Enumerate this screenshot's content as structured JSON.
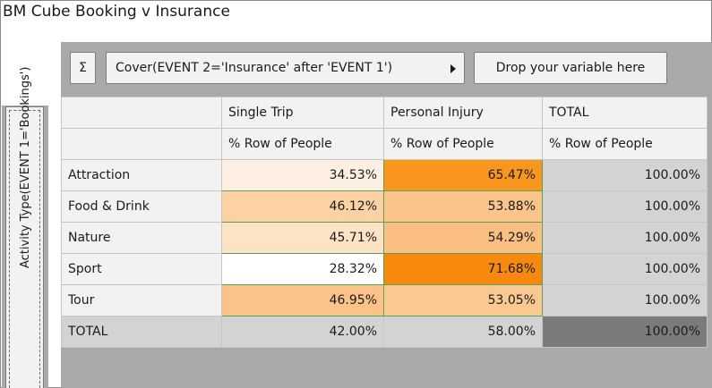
{
  "window": {
    "title": "BM Cube Booking v Insurance"
  },
  "toolbar": {
    "sigma_label": "Σ",
    "cover_label": "Cover(EVENT 2='Insurance' after 'EVENT 1')",
    "drop_label": "Drop your variable here"
  },
  "row_dimension": {
    "label": "Activity Type(EVENT 1='Bookings')"
  },
  "columns": [
    {
      "name": "Single Trip",
      "measure": "% Row of People"
    },
    {
      "name": "Personal Injury",
      "measure": "% Row of People"
    },
    {
      "name": "TOTAL",
      "measure": "% Row of People"
    }
  ],
  "rows": [
    {
      "label": "Attraction",
      "cells": [
        "34.53%",
        "65.47%",
        "100.00%"
      ],
      "colors": [
        "#fdf0e2",
        "#f9961d"
      ]
    },
    {
      "label": "Food & Drink",
      "cells": [
        "46.12%",
        "53.88%",
        "100.00%"
      ],
      "colors": [
        "#fcd1a4",
        "#fbc48a"
      ]
    },
    {
      "label": "Nature",
      "cells": [
        "45.71%",
        "54.29%",
        "100.00%"
      ],
      "colors": [
        "#fde3c6",
        "#fbbf82"
      ]
    },
    {
      "label": "Sport",
      "cells": [
        "28.32%",
        "71.68%",
        "100.00%"
      ],
      "colors": [
        "#ffffff",
        "#f78a0e"
      ]
    },
    {
      "label": "Tour",
      "cells": [
        "46.95%",
        "53.05%",
        "100.00%"
      ],
      "colors": [
        "#fbc389",
        "#fbc892"
      ]
    }
  ],
  "total_row": {
    "label": "TOTAL",
    "cells": [
      "42.00%",
      "58.00%",
      "100.00%"
    ]
  }
}
